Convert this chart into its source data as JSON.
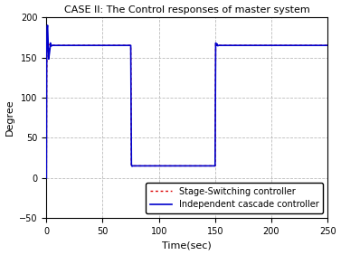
{
  "title": "CASE II: The Control responses of master system",
  "xlabel": "Time(sec)",
  "ylabel": "Degree",
  "xlim": [
    0,
    250
  ],
  "ylim": [
    -50,
    200
  ],
  "yticks": [
    -50,
    0,
    50,
    100,
    150,
    200
  ],
  "xticks": [
    0,
    50,
    100,
    150,
    200,
    250
  ],
  "grid_color": "#bbbbbb",
  "legend1": "Independent cascade controller",
  "legend2": "Stage-Switching controller",
  "line1_color": "#0000cc",
  "line2_color": "#dd0000",
  "bg_color": "#ffffff",
  "face_color": "#ffffff",
  "steady_high": 165.0,
  "steady_low": 15.0,
  "overshoot1": 190.0,
  "overshoot2": 168.0,
  "t_switch1": 75.0,
  "t_switch2": 150.0,
  "title_fontsize": 8,
  "label_fontsize": 8,
  "tick_fontsize": 7,
  "legend_fontsize": 7
}
